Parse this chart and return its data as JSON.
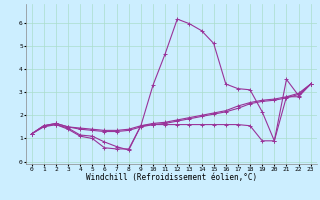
{
  "xlabel": "Windchill (Refroidissement éolien,°C)",
  "background_color": "#cceeff",
  "grid_color": "#aaddcc",
  "line_color": "#993399",
  "xlim": [
    -0.5,
    23.5
  ],
  "ylim": [
    -0.1,
    6.8
  ],
  "xticks": [
    0,
    1,
    2,
    3,
    4,
    5,
    6,
    7,
    8,
    9,
    10,
    11,
    12,
    13,
    14,
    15,
    16,
    17,
    18,
    19,
    20,
    21,
    22,
    23
  ],
  "yticks": [
    0,
    1,
    2,
    3,
    4,
    5,
    6
  ],
  "series": [
    [
      1.2,
      1.5,
      1.6,
      1.4,
      1.1,
      1.0,
      0.6,
      0.55,
      0.55,
      1.55,
      3.3,
      4.65,
      6.15,
      5.95,
      5.65,
      5.1,
      3.35,
      3.15,
      3.1,
      2.15,
      0.9,
      3.55,
      2.85,
      3.35
    ],
    [
      1.2,
      1.55,
      1.6,
      1.45,
      1.15,
      1.1,
      0.85,
      0.65,
      0.5,
      1.55,
      1.6,
      1.6,
      1.6,
      1.6,
      1.6,
      1.6,
      1.6,
      1.6,
      1.55,
      0.9,
      0.9,
      2.8,
      2.8,
      3.35
    ],
    [
      1.2,
      1.55,
      1.65,
      1.5,
      1.45,
      1.4,
      1.35,
      1.35,
      1.4,
      1.55,
      1.65,
      1.7,
      1.8,
      1.9,
      2.0,
      2.1,
      2.2,
      2.4,
      2.55,
      2.65,
      2.7,
      2.8,
      2.95,
      3.35
    ],
    [
      1.2,
      1.55,
      1.65,
      1.5,
      1.4,
      1.35,
      1.3,
      1.3,
      1.35,
      1.5,
      1.6,
      1.65,
      1.75,
      1.85,
      1.95,
      2.05,
      2.15,
      2.3,
      2.5,
      2.6,
      2.65,
      2.75,
      2.9,
      3.35
    ]
  ],
  "marker": "+",
  "markersize": 3,
  "linewidth": 0.8,
  "tick_fontsize": 4.5,
  "label_fontsize": 5.5
}
